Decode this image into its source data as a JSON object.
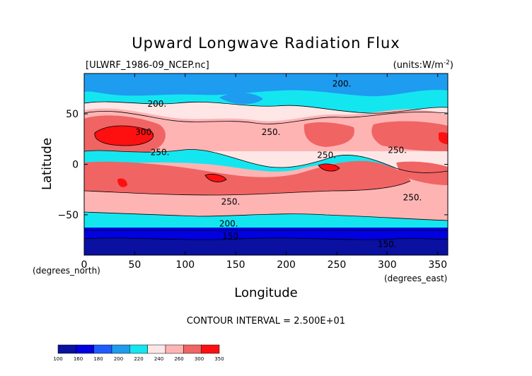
{
  "chart_data": {
    "type": "heatmap",
    "title": "Upward Longwave Radiation Flux",
    "dataset_label": "[ULWRF_1986-09_NCEP.nc]",
    "units_label": "(units:W/m^-2)",
    "xlabel": "Longitude",
    "ylabel": "Latitude",
    "xunit": "(degrees_east)",
    "yunit": "(degrees_north)",
    "xlim": [
      0,
      360
    ],
    "ylim": [
      -90,
      90
    ],
    "xticks": [
      0,
      50,
      100,
      150,
      200,
      250,
      300,
      350
    ],
    "yticks": [
      50,
      0,
      -50
    ],
    "xtick_labels": [
      "0",
      "50",
      "100",
      "150",
      "200",
      "250",
      "300",
      "350"
    ],
    "ytick_labels": [
      "50",
      "0",
      "−50"
    ],
    "contour_interval_text": "CONTOUR INTERVAL = 2.500E+01",
    "contour_labels": [
      {
        "text": "200.",
        "lon": 255,
        "lat": 80
      },
      {
        "text": "200.",
        "lon": 72,
        "lat": 60
      },
      {
        "text": "300.",
        "lon": 60,
        "lat": 32
      },
      {
        "text": "250.",
        "lon": 185,
        "lat": 32
      },
      {
        "text": "250.",
        "lon": 75,
        "lat": 12
      },
      {
        "text": "250.",
        "lon": 240,
        "lat": 9
      },
      {
        "text": "250.",
        "lon": 310,
        "lat": 14
      },
      {
        "text": "250.",
        "lon": 325,
        "lat": -33
      },
      {
        "text": "250.",
        "lon": 145,
        "lat": -37
      },
      {
        "text": "200.",
        "lon": 143,
        "lat": -59
      },
      {
        "text": "150.",
        "lon": 146,
        "lat": -71
      },
      {
        "text": "150.",
        "lon": 300,
        "lat": -79
      }
    ],
    "colorbar": {
      "levels": [
        "100",
        "160",
        "180",
        "200",
        "220",
        "240",
        "260",
        "300",
        "350"
      ],
      "colors": [
        "#0a10a0",
        "#0000e0",
        "#1e5cff",
        "#1e9cf0",
        "#14e6f0",
        "#ffe6e6",
        "#ffb4b4",
        "#f06464",
        "#ff1010"
      ]
    },
    "grid": false,
    "legend": "colorbar-bottom-left"
  }
}
